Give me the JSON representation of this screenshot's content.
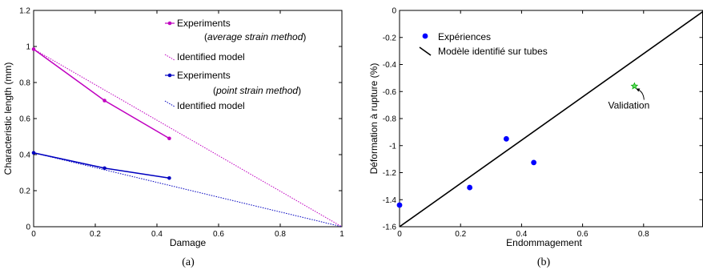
{
  "chart_data": [
    {
      "type": "line",
      "xlabel": "Damage",
      "ylabel": "Characteristic length (mm)",
      "xlim": [
        0,
        1
      ],
      "ylim": [
        0,
        1.2
      ],
      "xticks": [
        "0",
        "0.2",
        "0.4",
        "0.6",
        "0.8",
        "1"
      ],
      "yticks": [
        "0",
        "0.2",
        "0.4",
        "0.6",
        "0.8",
        "1",
        "1.2"
      ],
      "xtick_values": [
        0,
        0.2,
        0.4,
        0.6,
        0.8,
        1
      ],
      "ytick_values": [
        0,
        0.2,
        0.4,
        0.6,
        0.8,
        1,
        1.2
      ],
      "grid": false,
      "legend_placement": "top-right",
      "caption": "(a)",
      "legend": [
        {
          "line1": "Experiments",
          "line2_italic": "average strain method"
        },
        {
          "line1": "Identified model"
        },
        {
          "line1": "Experiments",
          "line2_italic": "point strain method"
        },
        {
          "line1": "Identified model"
        }
      ],
      "series": [
        {
          "style": "markers-line",
          "color": "#c000c0",
          "x": [
            0,
            0.23,
            0.44
          ],
          "y": [
            0.985,
            0.7,
            0.49
          ]
        },
        {
          "style": "dotted",
          "color": "#c000c0",
          "x": [
            0,
            1
          ],
          "y": [
            0.985,
            0
          ]
        },
        {
          "style": "markers-line",
          "color": "#0000c0",
          "x": [
            0,
            0.23,
            0.44
          ],
          "y": [
            0.41,
            0.325,
            0.27
          ]
        },
        {
          "style": "dotted",
          "color": "#0000c0",
          "x": [
            0,
            1
          ],
          "y": [
            0.41,
            0
          ]
        }
      ]
    },
    {
      "type": "scatter",
      "xlabel": "Endommagement",
      "ylabel": "Déformation à rupture (%)",
      "xlim": [
        0,
        1
      ],
      "ylim": [
        -1.6,
        0
      ],
      "xticks": [
        "0",
        "0.2",
        "0.4",
        "0.6",
        "0.8"
      ],
      "yticks": [
        "-1.6",
        "-1.4",
        "-1.2",
        "-1",
        "-0.8",
        "-0.6",
        "-0.4",
        "-0.2",
        "0"
      ],
      "xtick_values": [
        0,
        0.2,
        0.4,
        0.6,
        0.8
      ],
      "ytick_values": [
        -1.6,
        -1.4,
        -1.2,
        -1,
        -0.8,
        -0.6,
        -0.4,
        -0.2,
        0
      ],
      "grid": false,
      "legend_placement": "top-left",
      "caption": "(b)",
      "legend": [
        {
          "label": "Expériences"
        },
        {
          "label": "Modèle identifié sur tubes"
        }
      ],
      "series": [
        {
          "style": "points",
          "color": "#0000ff",
          "x": [
            0,
            0.23,
            0.35,
            0.44
          ],
          "y": [
            -1.44,
            -1.31,
            -0.95,
            -1.125
          ]
        },
        {
          "style": "line",
          "color": "#000000",
          "x": [
            0,
            1
          ],
          "y": [
            -1.6,
            0
          ]
        },
        {
          "style": "star",
          "color": "#00aa00",
          "x": [
            0.77
          ],
          "y": [
            -0.56
          ]
        }
      ],
      "annotation": {
        "text": "Validation",
        "x": 0.77,
        "y": -0.56
      }
    }
  ]
}
